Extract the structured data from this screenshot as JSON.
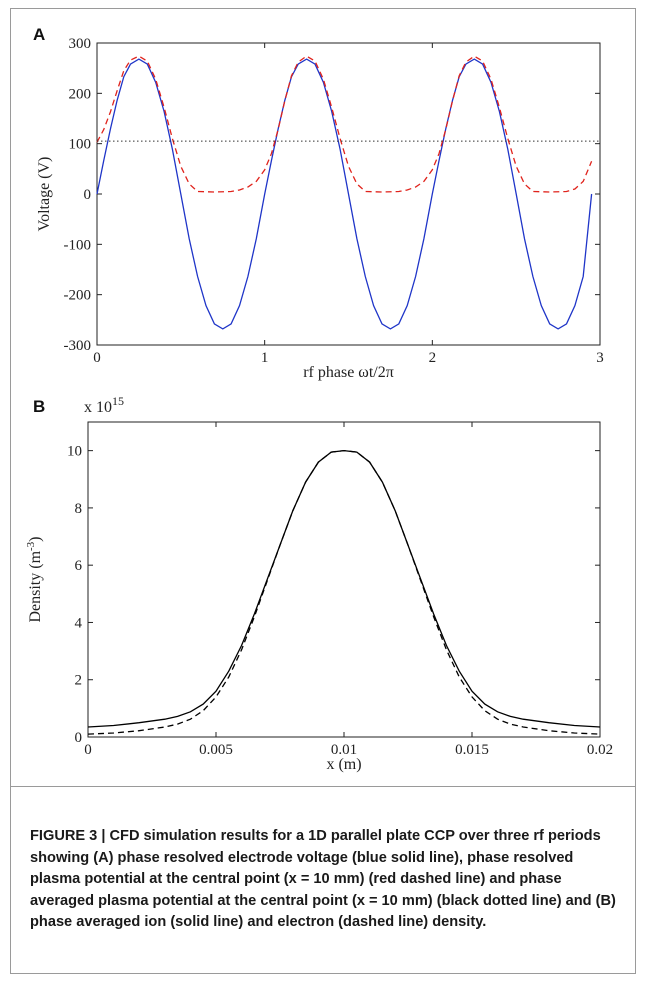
{
  "chart_data": [
    {
      "panel": "A",
      "type": "line",
      "xlabel": "rf phase ωt/2π",
      "ylabel": "Voltage (V)",
      "xlim": [
        0,
        3
      ],
      "ylim": [
        -300,
        300
      ],
      "xticks": [
        "0",
        "1",
        "2",
        "3"
      ],
      "yticks": [
        "-300",
        "-200",
        "-100",
        "0",
        "100",
        "200",
        "300"
      ],
      "series": [
        {
          "color": "#1f35c8",
          "style": "solid",
          "x": [
            0,
            0.04,
            0.08,
            0.12,
            0.16,
            0.2,
            0.25,
            0.3,
            0.35,
            0.4,
            0.45,
            0.5,
            0.55,
            0.6,
            0.65,
            0.7,
            0.75,
            0.8,
            0.85,
            0.9,
            0.95,
            1.0,
            1.04,
            1.08,
            1.12,
            1.16,
            1.2,
            1.25,
            1.3,
            1.35,
            1.4,
            1.45,
            1.5,
            1.55,
            1.6,
            1.65,
            1.7,
            1.75,
            1.8,
            1.85,
            1.9,
            1.95,
            2.0,
            2.04,
            2.08,
            2.12,
            2.16,
            2.2,
            2.25,
            2.3,
            2.35,
            2.4,
            2.45,
            2.5,
            2.55,
            2.6,
            2.65,
            2.7,
            2.75,
            2.8,
            2.85,
            2.9,
            2.95
          ],
          "values": [
            0,
            66,
            129,
            186,
            233,
            258,
            268,
            258,
            222,
            164,
            89,
            0,
            -89,
            -164,
            -222,
            -258,
            -268,
            -258,
            -222,
            -164,
            -89,
            0,
            66,
            129,
            186,
            233,
            258,
            268,
            258,
            222,
            164,
            89,
            0,
            -89,
            -164,
            -222,
            -258,
            -268,
            -258,
            -222,
            -164,
            -89,
            0,
            66,
            129,
            186,
            233,
            258,
            268,
            258,
            222,
            164,
            89,
            0,
            -89,
            -164,
            -222,
            -258,
            -268,
            -258,
            -222,
            -164,
            0
          ]
        },
        {
          "color": "#e0231c",
          "style": "dashed",
          "x": [
            0,
            0.04,
            0.08,
            0.12,
            0.16,
            0.2,
            0.25,
            0.3,
            0.35,
            0.4,
            0.45,
            0.5,
            0.55,
            0.6,
            0.7,
            0.8,
            0.85,
            0.9,
            0.95,
            1.0,
            1.04,
            1.08,
            1.12,
            1.16,
            1.2,
            1.25,
            1.3,
            1.35,
            1.4,
            1.45,
            1.5,
            1.55,
            1.6,
            1.7,
            1.8,
            1.85,
            1.9,
            1.95,
            2.0,
            2.04,
            2.08,
            2.12,
            2.16,
            2.2,
            2.25,
            2.3,
            2.35,
            2.4,
            2.45,
            2.5,
            2.55,
            2.6,
            2.7,
            2.8,
            2.85,
            2.9,
            2.95
          ],
          "values": [
            103,
            128,
            163,
            205,
            245,
            266,
            274,
            264,
            228,
            172,
            110,
            55,
            20,
            5,
            4,
            5,
            8,
            14,
            25,
            48,
            80,
            128,
            185,
            235,
            262,
            274,
            264,
            228,
            172,
            110,
            55,
            20,
            5,
            4,
            5,
            8,
            14,
            25,
            48,
            80,
            128,
            185,
            235,
            262,
            274,
            264,
            228,
            172,
            110,
            55,
            20,
            5,
            4,
            5,
            10,
            25,
            65
          ]
        },
        {
          "color": "#333333",
          "style": "dotted",
          "x": [
            0,
            3
          ],
          "values": [
            105,
            105
          ]
        }
      ]
    },
    {
      "panel": "B",
      "type": "line",
      "xlabel": "x (m)",
      "ylabel": "Density (m-3)",
      "scale_label": "x 10^15",
      "xlim": [
        0,
        0.02
      ],
      "ylim": [
        0,
        11
      ],
      "xticks": [
        "0",
        "0.005",
        "0.01",
        "0.015",
        "0.02"
      ],
      "yticks": [
        "0",
        "2",
        "4",
        "6",
        "8",
        "10"
      ],
      "series": [
        {
          "name": "ion",
          "color": "#000000",
          "style": "solid",
          "x": [
            0,
            0.001,
            0.002,
            0.003,
            0.0035,
            0.004,
            0.0045,
            0.005,
            0.0055,
            0.006,
            0.0065,
            0.007,
            0.0075,
            0.008,
            0.0085,
            0.009,
            0.0095,
            0.01,
            0.0105,
            0.011,
            0.0115,
            0.012,
            0.0125,
            0.013,
            0.0135,
            0.014,
            0.0145,
            0.015,
            0.0155,
            0.016,
            0.0165,
            0.017,
            0.018,
            0.019,
            0.02
          ],
          "values": [
            0.35,
            0.4,
            0.5,
            0.62,
            0.72,
            0.88,
            1.15,
            1.6,
            2.3,
            3.2,
            4.3,
            5.5,
            6.7,
            7.9,
            8.9,
            9.6,
            9.95,
            10.0,
            9.95,
            9.6,
            8.9,
            7.9,
            6.7,
            5.5,
            4.3,
            3.2,
            2.3,
            1.6,
            1.15,
            0.88,
            0.72,
            0.62,
            0.5,
            0.4,
            0.35
          ]
        },
        {
          "name": "electron",
          "color": "#000000",
          "style": "dashed",
          "x": [
            0,
            0.001,
            0.002,
            0.003,
            0.0035,
            0.004,
            0.0045,
            0.005,
            0.0055,
            0.006,
            0.0065,
            0.007,
            0.0075,
            0.008,
            0.0085,
            0.009,
            0.0095,
            0.01,
            0.0105,
            0.011,
            0.0115,
            0.012,
            0.0125,
            0.013,
            0.0135,
            0.014,
            0.0145,
            0.015,
            0.0155,
            0.016,
            0.0165,
            0.017,
            0.018,
            0.019,
            0.02
          ],
          "values": [
            0.1,
            0.14,
            0.22,
            0.35,
            0.45,
            0.62,
            0.92,
            1.4,
            2.1,
            3.05,
            4.2,
            5.45,
            6.7,
            7.9,
            8.9,
            9.6,
            9.95,
            10.0,
            9.95,
            9.6,
            8.9,
            7.9,
            6.7,
            5.45,
            4.2,
            3.05,
            2.1,
            1.4,
            0.92,
            0.62,
            0.45,
            0.35,
            0.22,
            0.14,
            0.1
          ]
        }
      ]
    }
  ],
  "caption": "FIGURE 3 | CFD simulation results for a 1D parallel plate CCP over three rf periods showing (A) phase resolved electrode voltage (blue solid line), phase resolved plasma potential at the central point (x = 10 mm) (red dashed line) and phase averaged plasma potential at the central point (x = 10 mm) (black dotted line) and (B) phase averaged ion (solid line) and electron (dashed line) density."
}
